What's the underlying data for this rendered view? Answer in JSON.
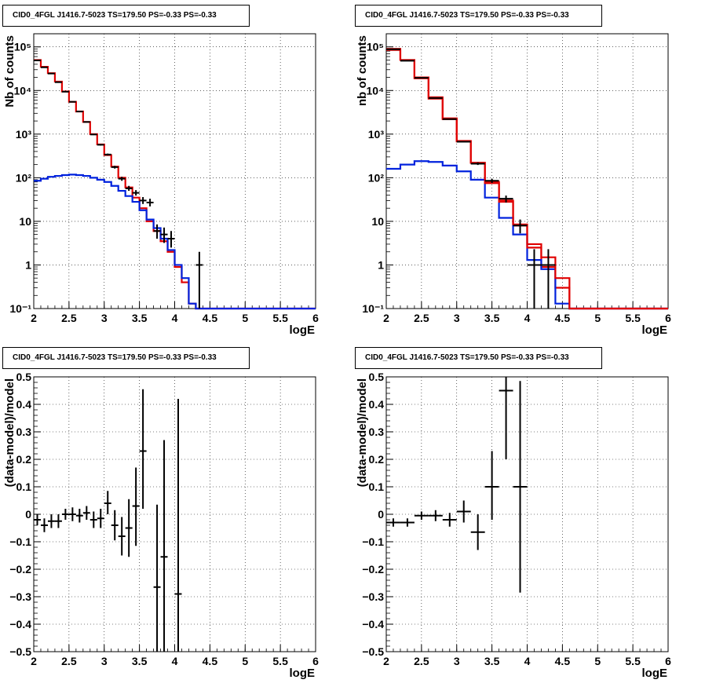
{
  "pads": [
    {
      "title": "CID0_4FGL J1416.7-5023 TS=179.50 PS=-0.33 PS=-0.33"
    },
    {
      "title": "CID0_4FGL J1416.7-5023 TS=179.50 PS=-0.33 PS=-0.33"
    },
    {
      "title": "CID0_4FGL J1416.7-5023 TS=179.50 PS=-0.33 PS=-0.33"
    },
    {
      "title": "CID0_4FGL J1416.7-5023 TS=179.50 PS=-0.33 PS=-0.33"
    }
  ],
  "colors": {
    "data": "#000000",
    "total_model": "#e00000",
    "background_model": "#0022dd"
  },
  "chart_data": [
    {
      "type": "line",
      "title": "CID0_4FGL J1416.7-5023 TS=179.50 PS=-0.33 PS=-0.33",
      "xlabel": "logE",
      "ylabel": "Nb of counts",
      "xlim": [
        2,
        6
      ],
      "ylim": [
        0.1,
        200000
      ],
      "ylog": true,
      "grid": true,
      "xticks": [
        "2",
        "2.5",
        "3",
        "3.5",
        "4",
        "4.5",
        "5",
        "5.5",
        "6"
      ],
      "yticks": [
        "10⁻¹",
        "1",
        "10",
        "10²",
        "10³",
        "10⁴",
        "10⁵"
      ],
      "bin_width": 0.1,
      "bin_edges_start": 2.0,
      "series": [
        {
          "values": [
            50000,
            35000,
            25000,
            16000,
            9500,
            5500,
            3300,
            1900,
            1000,
            580,
            330,
            180,
            100,
            60,
            35,
            20,
            10,
            6,
            3.5,
            2,
            0.9,
            0.4,
            0.13,
            0.1,
            0.1,
            0.1,
            0.1,
            0.1,
            0.1,
            0.1,
            0.1,
            0.1,
            0.1,
            0.1,
            0.1,
            0.1,
            0.1,
            0.1,
            0.1,
            0.1
          ]
        },
        {
          "values": [
            85,
            95,
            105,
            110,
            115,
            118,
            115,
            110,
            100,
            90,
            80,
            65,
            50,
            38,
            28,
            18,
            11,
            7,
            4,
            2.2,
            1,
            0.5,
            0.13,
            0.1,
            0.1,
            0.1,
            0.1,
            0.1,
            0.1,
            0.1,
            0.1,
            0.1,
            0.1,
            0.1,
            0.1,
            0.1,
            0.1,
            0.1,
            0.1,
            0.1
          ]
        }
      ],
      "points": [
        {
          "x": 2.05,
          "y": 49000,
          "lo": 48500,
          "hi": 49500
        },
        {
          "x": 2.15,
          "y": 34000,
          "lo": 33600,
          "hi": 34400
        },
        {
          "x": 2.25,
          "y": 24500,
          "lo": 24100,
          "hi": 24900
        },
        {
          "x": 2.35,
          "y": 15500,
          "lo": 15200,
          "hi": 15800
        },
        {
          "x": 2.45,
          "y": 9400,
          "lo": 9200,
          "hi": 9600
        },
        {
          "x": 2.55,
          "y": 5500,
          "lo": 5350,
          "hi": 5650
        },
        {
          "x": 2.65,
          "y": 3300,
          "lo": 3200,
          "hi": 3400
        },
        {
          "x": 2.75,
          "y": 1900,
          "lo": 1850,
          "hi": 1950
        },
        {
          "x": 2.85,
          "y": 980,
          "lo": 950,
          "hi": 1010
        },
        {
          "x": 2.95,
          "y": 570,
          "lo": 546,
          "hi": 594
        },
        {
          "x": 3.05,
          "y": 340,
          "lo": 322,
          "hi": 358
        },
        {
          "x": 3.15,
          "y": 175,
          "lo": 162,
          "hi": 188
        },
        {
          "x": 3.25,
          "y": 95,
          "lo": 85,
          "hi": 105
        },
        {
          "x": 3.35,
          "y": 57,
          "lo": 50,
          "hi": 65
        },
        {
          "x": 3.45,
          "y": 45,
          "lo": 39,
          "hi": 52
        },
        {
          "x": 3.55,
          "y": 30,
          "lo": 25,
          "hi": 36
        },
        {
          "x": 3.65,
          "y": 27,
          "lo": 22,
          "hi": 33
        },
        {
          "x": 3.75,
          "y": 6,
          "lo": 4,
          "hi": 8.5
        },
        {
          "x": 3.85,
          "y": 5,
          "lo": 3.2,
          "hi": 7.2
        },
        {
          "x": 3.95,
          "y": 4,
          "lo": 2.5,
          "hi": 6
        },
        {
          "x": 4.35,
          "y": 1,
          "lo": 0.1,
          "hi": 2.0
        }
      ]
    },
    {
      "type": "line",
      "title": "CID0_4FGL J1416.7-5023 TS=179.50 PS=-0.33 PS=-0.33",
      "xlabel": "logE",
      "ylabel": "nb of counts",
      "xlim": [
        2,
        6
      ],
      "ylim": [
        0.1,
        200000
      ],
      "ylog": true,
      "grid": true,
      "xticks": [
        "2",
        "2.5",
        "3",
        "3.5",
        "4",
        "4.5",
        "5",
        "5.5",
        "6"
      ],
      "yticks": [
        "10⁻¹",
        "1",
        "10",
        "10²",
        "10³",
        "10⁴",
        "10⁵"
      ],
      "bin_width": 0.2,
      "bin_edges_start": 2.0,
      "series": [
        {
          "values": [
            85000,
            50000,
            20000,
            7000,
            2200,
            700,
            220,
            80,
            30,
            8,
            3,
            0.9,
            0.3,
            0.1,
            0.1,
            0.1,
            0.1,
            0.1,
            0.1,
            0.1
          ]
        },
        {
          "values": [
            160,
            200,
            240,
            230,
            190,
            140,
            90,
            35,
            12,
            5,
            1.3,
            0.8,
            0.13,
            0.1,
            0.1,
            0.1,
            0.1,
            0.1,
            0.1,
            0.1
          ]
        },
        {
          "values": [
            90000,
            50000,
            19000,
            6500,
            2300,
            680,
            220,
            75,
            28,
            8.5,
            2.5,
            1.5,
            0.5,
            0.1,
            0.1,
            0.1,
            0.1,
            0.1,
            0.1,
            0.1
          ]
        }
      ],
      "points": [
        {
          "x": 2.1,
          "y": 88000,
          "lo": 87500,
          "hi": 88500
        },
        {
          "x": 2.3,
          "y": 48000,
          "lo": 47600,
          "hi": 48400
        },
        {
          "x": 2.5,
          "y": 19500,
          "lo": 19200,
          "hi": 19800
        },
        {
          "x": 2.7,
          "y": 6700,
          "lo": 6550,
          "hi": 6850
        },
        {
          "x": 2.9,
          "y": 2200,
          "lo": 2150,
          "hi": 2250
        },
        {
          "x": 3.1,
          "y": 670,
          "lo": 645,
          "hi": 695
        },
        {
          "x": 3.3,
          "y": 210,
          "lo": 196,
          "hi": 225
        },
        {
          "x": 3.5,
          "y": 85,
          "lo": 76,
          "hi": 94
        },
        {
          "x": 3.7,
          "y": 33,
          "lo": 27,
          "hi": 39
        },
        {
          "x": 3.9,
          "y": 8,
          "lo": 5.3,
          "hi": 11
        },
        {
          "x": 4.1,
          "y": 1,
          "lo": 0.1,
          "hi": 2.3
        },
        {
          "x": 4.3,
          "y": 1,
          "lo": 0.1,
          "hi": 2.3
        }
      ]
    },
    {
      "type": "scatter",
      "title": "CID0_4FGL J1416.7-5023 TS=179.50 PS=-0.33 PS=-0.33",
      "xlabel": "logE",
      "ylabel": "(data-model)/model",
      "xlim": [
        2,
        6
      ],
      "ylim": [
        -0.5,
        0.5
      ],
      "grid": true,
      "xticks": [
        "2",
        "2.5",
        "3",
        "3.5",
        "4",
        "4.5",
        "5",
        "5.5",
        "6"
      ],
      "yticks": [
        "−0.5",
        "−0.4",
        "−0.3",
        "−0.2",
        "−0.1",
        "0",
        "0.1",
        "0.2",
        "0.3",
        "0.4",
        "0.5"
      ],
      "points": [
        {
          "x": 2.05,
          "y": -0.02,
          "lo": -0.04,
          "hi": 0.0,
          "xerr": 0.05
        },
        {
          "x": 2.15,
          "y": -0.04,
          "lo": -0.065,
          "hi": -0.015,
          "xerr": 0.05
        },
        {
          "x": 2.25,
          "y": -0.025,
          "lo": -0.05,
          "hi": 0.0,
          "xerr": 0.05
        },
        {
          "x": 2.35,
          "y": -0.025,
          "lo": -0.05,
          "hi": 0.0,
          "xerr": 0.05
        },
        {
          "x": 2.45,
          "y": 0.0,
          "lo": -0.02,
          "hi": 0.02,
          "xerr": 0.05
        },
        {
          "x": 2.55,
          "y": 0.0,
          "lo": -0.025,
          "hi": 0.025,
          "xerr": 0.05
        },
        {
          "x": 2.65,
          "y": -0.005,
          "lo": -0.03,
          "hi": 0.02,
          "xerr": 0.05
        },
        {
          "x": 2.75,
          "y": 0.005,
          "lo": -0.02,
          "hi": 0.03,
          "xerr": 0.05
        },
        {
          "x": 2.85,
          "y": -0.02,
          "lo": -0.05,
          "hi": 0.01,
          "xerr": 0.05
        },
        {
          "x": 2.95,
          "y": -0.015,
          "lo": -0.05,
          "hi": 0.02,
          "xerr": 0.05
        },
        {
          "x": 3.05,
          "y": 0.04,
          "lo": 0.0,
          "hi": 0.085,
          "xerr": 0.05
        },
        {
          "x": 3.15,
          "y": -0.04,
          "lo": -0.095,
          "hi": 0.015,
          "xerr": 0.05
        },
        {
          "x": 3.25,
          "y": -0.08,
          "lo": -0.15,
          "hi": -0.01,
          "xerr": 0.05
        },
        {
          "x": 3.35,
          "y": -0.05,
          "lo": -0.155,
          "hi": 0.055,
          "xerr": 0.05
        },
        {
          "x": 3.45,
          "y": 0.03,
          "lo": -0.115,
          "hi": 0.17,
          "xerr": 0.05
        },
        {
          "x": 3.55,
          "y": 0.23,
          "lo": 0.02,
          "hi": 0.455,
          "xerr": 0.05
        },
        {
          "x": 3.75,
          "y": -0.265,
          "lo": -0.5,
          "hi": 0.035,
          "xerr": 0.05
        },
        {
          "x": 3.85,
          "y": -0.155,
          "lo": -0.5,
          "hi": 0.27,
          "xerr": 0.05
        },
        {
          "x": 4.05,
          "y": -0.29,
          "lo": -0.5,
          "hi": 0.42,
          "xerr": 0.05
        }
      ]
    },
    {
      "type": "scatter",
      "title": "CID0_4FGL J1416.7-5023 TS=179.50 PS=-0.33 PS=-0.33",
      "xlabel": "logE",
      "ylabel": "(data-model)/model",
      "xlim": [
        2,
        6
      ],
      "ylim": [
        -0.5,
        0.5
      ],
      "grid": true,
      "xticks": [
        "2",
        "2.5",
        "3",
        "3.5",
        "4",
        "4.5",
        "5",
        "5.5",
        "6"
      ],
      "yticks": [
        "−0.5",
        "−0.4",
        "−0.3",
        "−0.2",
        "−0.1",
        "0",
        "0.1",
        "0.2",
        "0.3",
        "0.4",
        "0.5"
      ],
      "points": [
        {
          "x": 2.1,
          "y": -0.03,
          "lo": -0.045,
          "hi": -0.015,
          "xerr": 0.1
        },
        {
          "x": 2.3,
          "y": -0.03,
          "lo": -0.045,
          "hi": -0.015,
          "xerr": 0.1
        },
        {
          "x": 2.5,
          "y": -0.005,
          "lo": -0.02,
          "hi": 0.01,
          "xerr": 0.1
        },
        {
          "x": 2.7,
          "y": -0.005,
          "lo": -0.025,
          "hi": 0.015,
          "xerr": 0.1
        },
        {
          "x": 2.9,
          "y": -0.02,
          "lo": -0.045,
          "hi": 0.005,
          "xerr": 0.1
        },
        {
          "x": 3.1,
          "y": 0.01,
          "lo": -0.03,
          "hi": 0.05,
          "xerr": 0.1
        },
        {
          "x": 3.3,
          "y": -0.065,
          "lo": -0.13,
          "hi": 0.0,
          "xerr": 0.1
        },
        {
          "x": 3.5,
          "y": 0.1,
          "lo": -0.02,
          "hi": 0.23,
          "xerr": 0.1
        },
        {
          "x": 3.7,
          "y": 0.45,
          "lo": 0.2,
          "hi": 0.5,
          "xerr": 0.1
        },
        {
          "x": 3.9,
          "y": 0.1,
          "lo": -0.285,
          "hi": 0.485,
          "xerr": 0.1
        }
      ]
    }
  ]
}
